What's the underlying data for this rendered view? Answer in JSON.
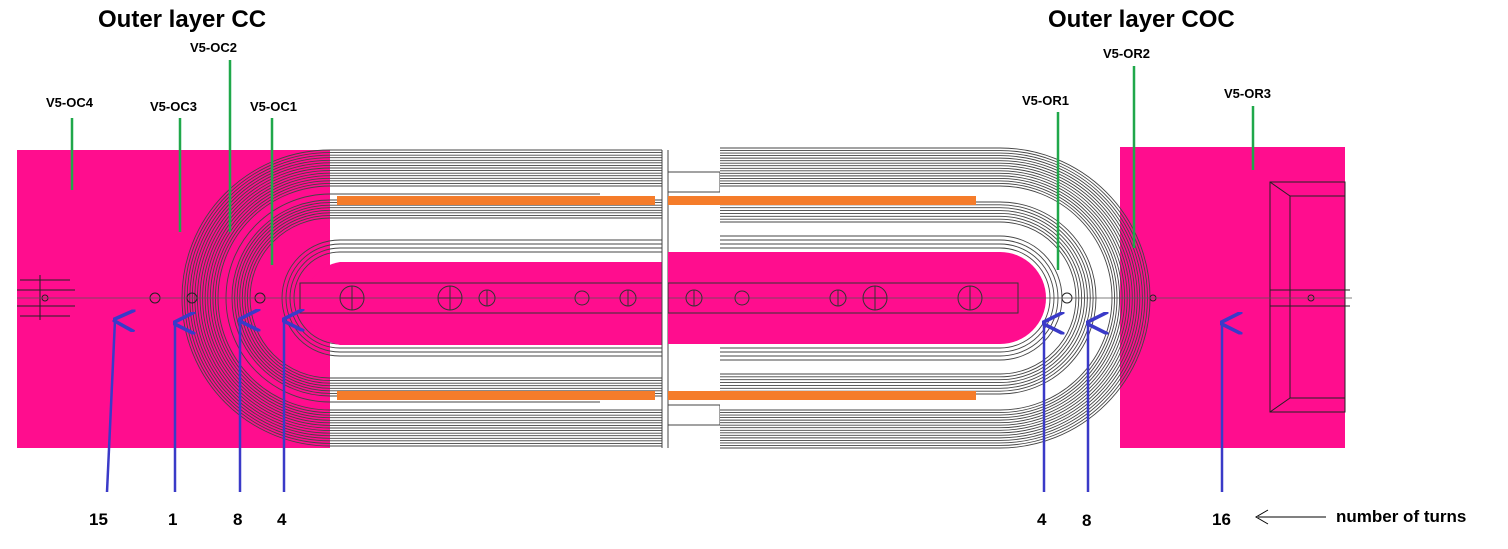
{
  "titles": {
    "left": "Outer layer CC",
    "right": "Outer layer COC"
  },
  "coil_labels": {
    "oc4": "V5-OC4",
    "oc3": "V5-OC3",
    "oc2": "V5-OC2",
    "oc1": "V5-OC1",
    "or1": "V5-OR1",
    "or2": "V5-OR2",
    "or3": "V5-OR3"
  },
  "turns": {
    "oc4": "15",
    "oc3": "1",
    "oc2": "8",
    "oc1": "4",
    "or1": "4",
    "or2": "8",
    "or3": "16",
    "legend": "number of turns"
  },
  "colors": {
    "insert": "#ff0d8e",
    "spacer": "#f57c2a",
    "leader": "#1fa84a",
    "arrow": "#3a3ac8",
    "winding": "#444444"
  }
}
